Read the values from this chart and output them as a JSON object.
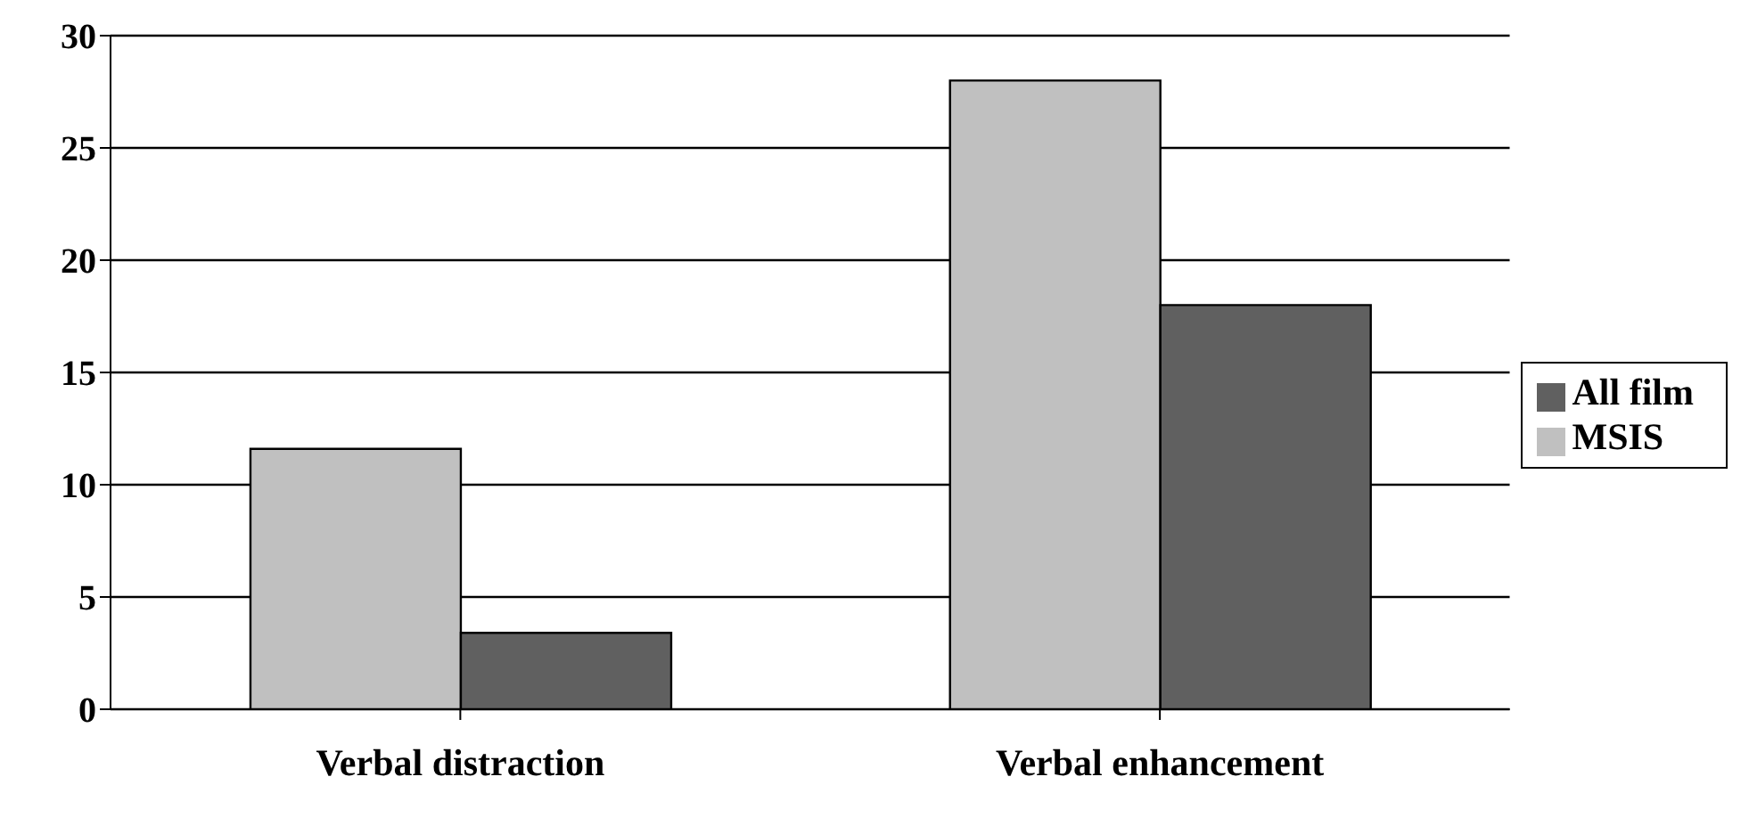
{
  "chart_data": {
    "type": "bar",
    "categories": [
      "Verbal distraction",
      "Verbal enhancement"
    ],
    "series": [
      {
        "name": "MSIS",
        "color": "#c0c0c0",
        "values": [
          11.6,
          28
        ]
      },
      {
        "name": "All film",
        "color": "#606060",
        "values": [
          3.4,
          18
        ]
      }
    ],
    "ylim": [
      0,
      30
    ],
    "yticks": [
      0,
      5,
      10,
      15,
      20,
      25,
      30
    ],
    "grid": "y",
    "legend": "right"
  }
}
